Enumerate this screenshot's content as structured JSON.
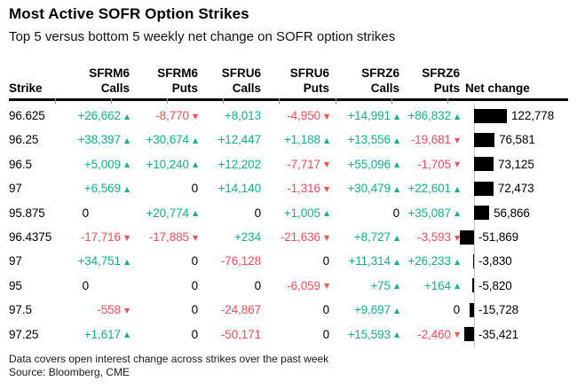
{
  "title": "Most Active SOFR Option Strikes",
  "subtitle": "Top 5 versus bottom 5 weekly net change on SOFR option strikes",
  "footnote": "Data covers open interest change across strikes over the past week",
  "source": "Source: Bloomberg, CME",
  "colors": {
    "positive": "#12b388",
    "negative": "#fa4d5a",
    "bar": "#000000",
    "axis": "#c4c4c4"
  },
  "icons": {
    "up": "▲",
    "down": "▼"
  },
  "table": {
    "strike_header": "Strike",
    "net_change_header": "Net change",
    "column_groups": [
      {
        "id": "sfrm6-calls",
        "ticker": "SFRM6",
        "type": "Calls"
      },
      {
        "id": "sfrm6-puts",
        "ticker": "SFRM6",
        "type": "Puts"
      },
      {
        "id": "sfru6-calls",
        "ticker": "SFRU6",
        "type": "Calls"
      },
      {
        "id": "sfru6-puts",
        "ticker": "SFRU6",
        "type": "Puts"
      },
      {
        "id": "sfrz6-calls",
        "ticker": "SFRZ6",
        "type": "Calls"
      },
      {
        "id": "sfrz6-puts",
        "ticker": "SFRZ6",
        "type": "Puts"
      }
    ],
    "rows": [
      {
        "strike": "96.625",
        "cells": [
          {
            "text": "+26,662",
            "dir": "up"
          },
          {
            "text": "-8,770",
            "dir": "down"
          },
          {
            "text": "+8,013",
            "dir": null
          },
          {
            "text": "-4,950",
            "dir": "down"
          },
          {
            "text": "+14,991",
            "dir": "up"
          },
          {
            "text": "+86,832",
            "dir": "up"
          }
        ],
        "net": 122778,
        "net_label": "122,778"
      },
      {
        "strike": "96.25",
        "cells": [
          {
            "text": "+38,397",
            "dir": "up"
          },
          {
            "text": "+30,674",
            "dir": "up"
          },
          {
            "text": "+12,447",
            "dir": null
          },
          {
            "text": "+1,188",
            "dir": "up"
          },
          {
            "text": "+13,556",
            "dir": "up"
          },
          {
            "text": "-19,681",
            "dir": "down"
          }
        ],
        "net": 76581,
        "net_label": "76,581"
      },
      {
        "strike": "96.5",
        "cells": [
          {
            "text": "+5,009",
            "dir": "up"
          },
          {
            "text": "+10,240",
            "dir": "up"
          },
          {
            "text": "+12,202",
            "dir": null
          },
          {
            "text": "-7,717",
            "dir": "down"
          },
          {
            "text": "+55,096",
            "dir": "up"
          },
          {
            "text": "-1,705",
            "dir": "down"
          }
        ],
        "net": 73125,
        "net_label": "73,125"
      },
      {
        "strike": "97",
        "cells": [
          {
            "text": "+6,569",
            "dir": "up"
          },
          {
            "text": "0",
            "dir": null
          },
          {
            "text": "+14,140",
            "dir": null
          },
          {
            "text": "-1,316",
            "dir": "down"
          },
          {
            "text": "+30,479",
            "dir": "up"
          },
          {
            "text": "+22,601",
            "dir": "up"
          }
        ],
        "net": 72473,
        "net_label": "72,473"
      },
      {
        "strike": "95.875",
        "cells": [
          {
            "text": "0",
            "dir": null
          },
          {
            "text": "+20,774",
            "dir": "up"
          },
          {
            "text": "0",
            "dir": null
          },
          {
            "text": "+1,005",
            "dir": "up"
          },
          {
            "text": "0",
            "dir": null
          },
          {
            "text": "+35,087",
            "dir": "up"
          }
        ],
        "net": 56866,
        "net_label": "56,866"
      },
      {
        "strike": "96.4375",
        "cells": [
          {
            "text": "-17,716",
            "dir": "down"
          },
          {
            "text": "-17,885",
            "dir": "down"
          },
          {
            "text": "+234",
            "dir": null
          },
          {
            "text": "-21,636",
            "dir": "down"
          },
          {
            "text": "+8,727",
            "dir": "up"
          },
          {
            "text": "-3,593",
            "dir": "down"
          }
        ],
        "net": -51869,
        "net_label": "-51,869"
      },
      {
        "strike": "97",
        "cells": [
          {
            "text": "+34,751",
            "dir": "up"
          },
          {
            "text": "0",
            "dir": null
          },
          {
            "text": "-76,128",
            "dir": null
          },
          {
            "text": "0",
            "dir": null
          },
          {
            "text": "+11,314",
            "dir": "up"
          },
          {
            "text": "+26,233",
            "dir": "up"
          }
        ],
        "net": -3830,
        "net_label": "-3,830"
      },
      {
        "strike": "95",
        "cells": [
          {
            "text": "0",
            "dir": null
          },
          {
            "text": "0",
            "dir": null
          },
          {
            "text": "0",
            "dir": null
          },
          {
            "text": "-6,059",
            "dir": "down"
          },
          {
            "text": "+75",
            "dir": "up"
          },
          {
            "text": "+164",
            "dir": "up"
          }
        ],
        "net": -5820,
        "net_label": "-5,820"
      },
      {
        "strike": "97.5",
        "cells": [
          {
            "text": "-558",
            "dir": "down"
          },
          {
            "text": "0",
            "dir": null
          },
          {
            "text": "-24,867",
            "dir": null
          },
          {
            "text": "0",
            "dir": null
          },
          {
            "text": "+9,697",
            "dir": "up"
          },
          {
            "text": "0",
            "dir": null
          }
        ],
        "net": -15728,
        "net_label": "-15,728"
      },
      {
        "strike": "97.25",
        "cells": [
          {
            "text": "+1,617",
            "dir": "up"
          },
          {
            "text": "0",
            "dir": null
          },
          {
            "text": "-50,171",
            "dir": null
          },
          {
            "text": "0",
            "dir": null
          },
          {
            "text": "+15,593",
            "dir": "up"
          },
          {
            "text": "-2,460",
            "dir": "down"
          }
        ],
        "net": -35421,
        "net_label": "-35,421"
      }
    ]
  },
  "chart_data": {
    "type": "table",
    "title": "Most Active SOFR Option Strikes",
    "subtitle": "Top 5 versus bottom 5 weekly net change on SOFR option strikes",
    "columns": [
      "Strike",
      "SFRM6 Calls",
      "SFRM6 Puts",
      "SFRU6 Calls",
      "SFRU6 Puts",
      "SFRZ6 Calls",
      "SFRZ6 Puts",
      "Net change"
    ],
    "rows": [
      [
        "96.625",
        26662,
        -8770,
        8013,
        -4950,
        14991,
        86832,
        122778
      ],
      [
        "96.25",
        38397,
        30674,
        12447,
        1188,
        13556,
        -19681,
        76581
      ],
      [
        "96.5",
        5009,
        10240,
        12202,
        -7717,
        55096,
        -1705,
        73125
      ],
      [
        "97",
        6569,
        0,
        14140,
        -1316,
        30479,
        22601,
        72473
      ],
      [
        "95.875",
        0,
        20774,
        0,
        1005,
        0,
        35087,
        56866
      ],
      [
        "96.4375",
        -17716,
        -17885,
        234,
        -21636,
        8727,
        -3593,
        -51869
      ],
      [
        "97",
        34751,
        0,
        -76128,
        0,
        11314,
        26233,
        -3830
      ],
      [
        "95",
        0,
        0,
        0,
        -6059,
        75,
        164,
        -5820
      ],
      [
        "97.5",
        -558,
        0,
        -24867,
        0,
        9697,
        0,
        -15728
      ],
      [
        "97.25",
        1617,
        0,
        -50171,
        0,
        15593,
        -2460,
        -35421
      ]
    ],
    "net_change_bar": {
      "type": "bar",
      "orientation": "horizontal",
      "anchored_at_zero_axis": true,
      "max_abs_value": 122778,
      "bar_color": "#000000",
      "positive_direction": "right",
      "negative_direction": "left"
    }
  }
}
